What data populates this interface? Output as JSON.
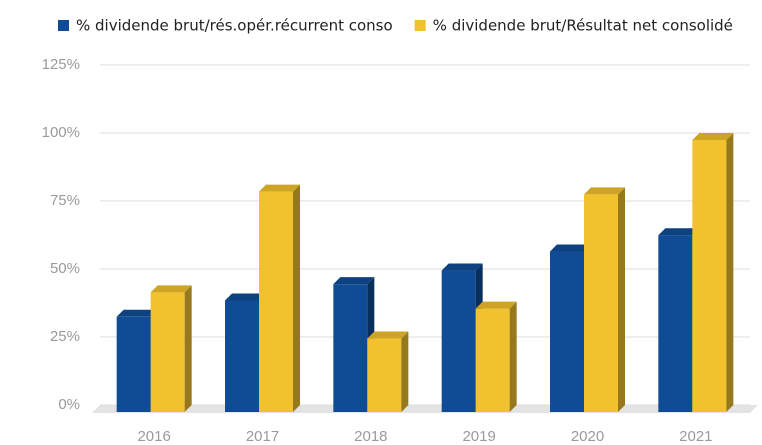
{
  "chart_data": {
    "type": "bar",
    "categories": [
      "2016",
      "2017",
      "2018",
      "2019",
      "2020",
      "2021"
    ],
    "series": [
      {
        "name": "% dividende brut/rés.opér.récurrent conso",
        "color": "#0f4c95",
        "values": [
          35,
          41,
          47,
          52,
          59,
          65
        ]
      },
      {
        "name": "% dividende brut/Résultat net consolidé",
        "color": "#f2c12e",
        "values": [
          44,
          81,
          27,
          38,
          80,
          100
        ]
      }
    ],
    "ylim": [
      0,
      125
    ],
    "yticks": [
      {
        "value": 0,
        "label": "0%"
      },
      {
        "value": 25,
        "label": "25%"
      },
      {
        "value": 50,
        "label": "50%"
      },
      {
        "value": 75,
        "label": "75%"
      },
      {
        "value": 100,
        "label": "100%"
      },
      {
        "value": 125,
        "label": "125%"
      }
    ],
    "grid": true,
    "legend": "top"
  }
}
